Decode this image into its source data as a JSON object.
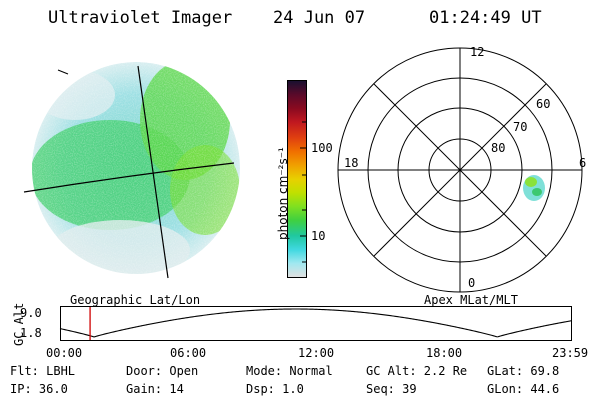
{
  "header": {
    "title": "Ultraviolet Imager",
    "date": "24 Jun 07",
    "time": "01:24:49 UT"
  },
  "colorbar": {
    "label": "photon cm⁻²s⁻¹",
    "ticks": [
      "100",
      "10"
    ],
    "scale": "log",
    "colors": [
      "#1a1030",
      "#5a0a2a",
      "#8a0a20",
      "#c01820",
      "#e04010",
      "#f07000",
      "#f0a000",
      "#e8d000",
      "#c0e000",
      "#80e020",
      "#40d040",
      "#20c8a0",
      "#40d8e0",
      "#a0e8f0",
      "#e0e0e0"
    ]
  },
  "polar": {
    "mlt_labels": [
      "12",
      "18",
      "6",
      "0"
    ],
    "lat_labels": [
      "60",
      "70",
      "80"
    ]
  },
  "left_caption": "Geographic Lat/Lon",
  "right_caption": "Apex MLat/MLT",
  "altitude_plot": {
    "ylabel": "GC Alt",
    "yticks": [
      "9.0",
      "1.8"
    ],
    "xticks": [
      "00:00",
      "06:00",
      "12:00",
      "18:00",
      "23:59"
    ],
    "marker_time_hours": 1.41,
    "marker_color": "#d00000"
  },
  "status": {
    "row1": {
      "flt": "Flt: LBHL",
      "door": "Door: Open",
      "mode": "Mode: Normal",
      "gcalt": "GC Alt: 2.2 Re",
      "glat": "GLat:  69.8"
    },
    "row2": {
      "ip": "IP: 36.0",
      "gain": "Gain: 14",
      "dsp": "Dsp:    1.0",
      "seq": "Seq: 39",
      "glon": "GLon:  44.6"
    }
  }
}
